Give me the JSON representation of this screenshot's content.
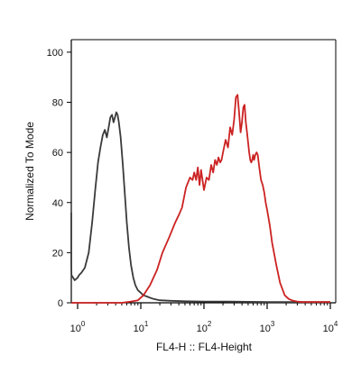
{
  "chart_data": {
    "type": "line",
    "xlabel": "FL4-H :: FL4-Height",
    "ylabel": "Normalized To Mode",
    "x_scale": "log",
    "xlim": [
      0.7,
      10000
    ],
    "ylim": [
      0,
      105
    ],
    "grid": false,
    "x_ticks": [
      {
        "base": "10",
        "exp": "0",
        "value": 1
      },
      {
        "base": "10",
        "exp": "1",
        "value": 10
      },
      {
        "base": "10",
        "exp": "2",
        "value": 100
      },
      {
        "base": "10",
        "exp": "3",
        "value": 1000
      },
      {
        "base": "10",
        "exp": "4",
        "value": 10000
      }
    ],
    "y_ticks": [
      "0",
      "20",
      "40",
      "60",
      "80",
      "100"
    ],
    "series": [
      {
        "color": "#3a3a3a",
        "x": [
          0.7,
          0.72,
          0.75,
          0.8,
          0.85,
          0.9,
          0.95,
          1.0,
          1.05,
          1.15,
          1.3,
          1.5,
          1.7,
          1.9,
          2.1,
          2.3,
          2.5,
          2.7,
          2.9,
          3.1,
          3.3,
          3.5,
          3.7,
          3.9,
          4.1,
          4.3,
          4.5,
          4.8,
          5.2,
          5.6,
          6.0,
          6.5,
          7.0,
          7.6,
          8.2,
          9.0,
          10,
          11,
          12.5,
          14,
          16,
          20,
          30,
          50,
          100,
          200,
          1000,
          10000
        ],
        "y": [
          36,
          25,
          15,
          11,
          10,
          9,
          9.5,
          10,
          11,
          12,
          14,
          20,
          32,
          45,
          56,
          62,
          67,
          69,
          66,
          70,
          74,
          75,
          72,
          74,
          76,
          75,
          72,
          66,
          55,
          43,
          32,
          22,
          15,
          10,
          7,
          5,
          4,
          3,
          2.5,
          2,
          1.5,
          1,
          0.8,
          0.6,
          0.5,
          0.5,
          0.3,
          0.3
        ]
      },
      {
        "color": "#cc2222",
        "x": [
          0.7,
          3,
          5,
          7,
          9,
          11,
          14,
          18,
          22,
          28,
          35,
          40,
          45,
          52,
          60,
          66,
          70,
          75,
          80,
          85,
          90,
          100,
          110,
          120,
          130,
          140,
          150,
          160,
          170,
          180,
          190,
          200,
          220,
          240,
          260,
          280,
          300,
          320,
          340,
          360,
          380,
          400,
          420,
          440,
          460,
          480,
          500,
          520,
          540,
          560,
          580,
          600,
          620,
          650,
          680,
          710,
          750,
          800,
          850,
          900,
          950,
          1000,
          1100,
          1200,
          1400,
          1600,
          1900,
          2200,
          2600,
          3000,
          3500,
          4000,
          4600,
          5200,
          6000,
          7000,
          8000,
          9000,
          10000
        ],
        "y": [
          0,
          0,
          0,
          0.5,
          1,
          3,
          7,
          13,
          20,
          26,
          32,
          35,
          38,
          46,
          50,
          49,
          52,
          49,
          54,
          47,
          53,
          45,
          50,
          49,
          55,
          52,
          57,
          55,
          58,
          56,
          57,
          60,
          65,
          62,
          70,
          67,
          73,
          82,
          83,
          76,
          68,
          72,
          78,
          79,
          72,
          68,
          64,
          60,
          57,
          56,
          57,
          59,
          57,
          59,
          60,
          59,
          54,
          49,
          47,
          44,
          40,
          37,
          31,
          24,
          15,
          8,
          3,
          1.5,
          0.8,
          0.5,
          0.3,
          0.3,
          0.3,
          0.3,
          0.3,
          0.3,
          0.3,
          0.3,
          0.3
        ]
      }
    ]
  }
}
